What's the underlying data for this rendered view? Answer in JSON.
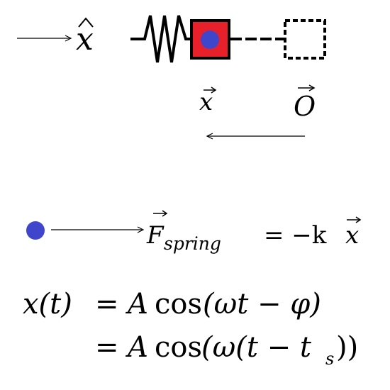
{
  "diagram": {
    "unit_vector_label": "x",
    "position_vector_label": "x",
    "origin_label": "O",
    "force": {
      "symbol": "F",
      "subscript": "spring",
      "rhs": "= −k",
      "rhs_vector": "x"
    },
    "equation": {
      "line1": {
        "lhs": "x(t)",
        "eq": "=",
        "amp": "A",
        "fn": "cos",
        "arg": "(ωt − φ)"
      },
      "line2": {
        "eq": "=",
        "amp": "A",
        "fn": "cos",
        "arg_open": "(ω(t − t",
        "arg_sub": "s",
        "arg_close": "))"
      }
    },
    "colors": {
      "mass_fill": "#e8202a",
      "dot": "#4046cc",
      "stroke": "#000000"
    }
  }
}
